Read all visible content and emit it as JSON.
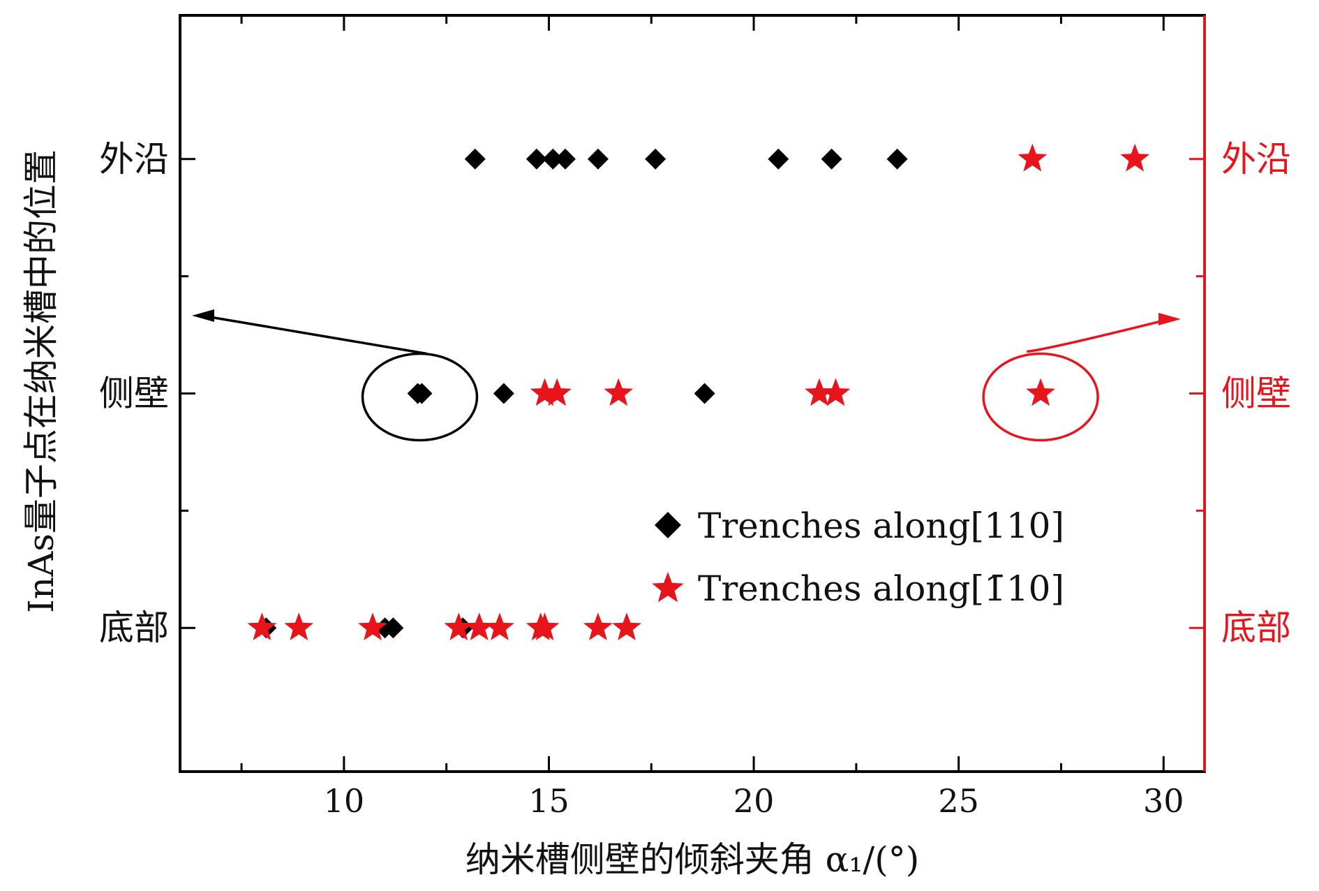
{
  "chart_data": {
    "type": "scatter",
    "xlabel": "纳米槽侧壁的倾斜夹角 α₁/(°)",
    "ylabel": "InAs量子点在纳米槽中的位置",
    "x_ticks": [
      "10",
      "15",
      "20",
      "25",
      "30"
    ],
    "xlim": [
      6,
      31
    ],
    "categories": [
      "底部",
      "侧壁",
      "外沿"
    ],
    "right_categories": [
      "底部",
      "侧壁",
      "外沿"
    ],
    "grid": false,
    "legend_position": "lower-right",
    "colors": {
      "black_series": "#000000",
      "red_series": "#e8141c"
    },
    "series": [
      {
        "name": "Trenches along[110]",
        "marker": "diamond",
        "points": [
          {
            "x": 13.2,
            "y": "外沿"
          },
          {
            "x": 14.7,
            "y": "外沿"
          },
          {
            "x": 15.1,
            "y": "外沿"
          },
          {
            "x": 15.4,
            "y": "外沿"
          },
          {
            "x": 16.2,
            "y": "外沿"
          },
          {
            "x": 17.6,
            "y": "外沿"
          },
          {
            "x": 20.6,
            "y": "外沿"
          },
          {
            "x": 21.9,
            "y": "外沿"
          },
          {
            "x": 23.5,
            "y": "外沿"
          },
          {
            "x": 11.8,
            "y": "侧壁"
          },
          {
            "x": 11.9,
            "y": "侧壁"
          },
          {
            "x": 13.9,
            "y": "侧壁"
          },
          {
            "x": 18.8,
            "y": "侧壁"
          },
          {
            "x": 8.1,
            "y": "底部"
          },
          {
            "x": 11.0,
            "y": "底部"
          },
          {
            "x": 11.2,
            "y": "底部"
          },
          {
            "x": 12.9,
            "y": "底部"
          }
        ]
      },
      {
        "name": "Trenches along[1̄10]",
        "marker": "star",
        "points": [
          {
            "x": 26.8,
            "y": "外沿"
          },
          {
            "x": 29.3,
            "y": "外沿"
          },
          {
            "x": 14.9,
            "y": "侧壁"
          },
          {
            "x": 15.2,
            "y": "侧壁"
          },
          {
            "x": 16.7,
            "y": "侧壁"
          },
          {
            "x": 21.6,
            "y": "侧壁"
          },
          {
            "x": 22.0,
            "y": "侧壁"
          },
          {
            "x": 27.0,
            "y": "侧壁"
          },
          {
            "x": 8.0,
            "y": "底部"
          },
          {
            "x": 8.9,
            "y": "底部"
          },
          {
            "x": 10.7,
            "y": "底部"
          },
          {
            "x": 12.8,
            "y": "底部"
          },
          {
            "x": 13.3,
            "y": "底部"
          },
          {
            "x": 13.8,
            "y": "底部"
          },
          {
            "x": 14.8,
            "y": "底部"
          },
          {
            "x": 14.9,
            "y": "底部"
          },
          {
            "x": 16.2,
            "y": "底部"
          },
          {
            "x": 16.9,
            "y": "底部"
          }
        ]
      }
    ],
    "annotations": [
      {
        "type": "ellipse-arrow",
        "color": "black",
        "target": {
          "x": 11.85,
          "y": "侧壁"
        },
        "direction": "left",
        "meaning": "left axis"
      },
      {
        "type": "ellipse-arrow",
        "color": "red",
        "target": {
          "x": 27.0,
          "y": "侧壁"
        },
        "direction": "right",
        "meaning": "right axis"
      }
    ],
    "legend": [
      {
        "label": "Trenches along[110]",
        "marker": "diamond"
      },
      {
        "label": "Trenches along[1̄10]",
        "marker": "star"
      }
    ]
  }
}
